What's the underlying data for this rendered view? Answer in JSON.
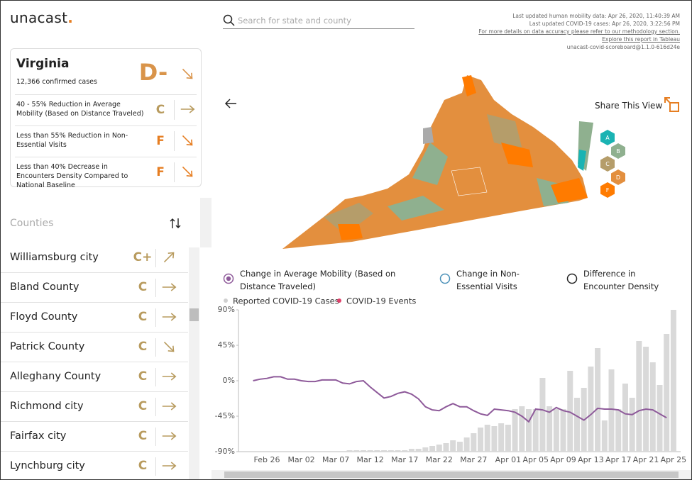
{
  "logo": {
    "name": "unacast",
    "dot": "."
  },
  "search": {
    "placeholder": "Search for state and county"
  },
  "updates": [
    "Last updated human mobility data: Apr 26, 2020, 11:40:39 AM",
    "Last updated COVID-19 cases: Apr 26, 2020, 3:22:56 PM",
    "For more details on data accuracy please refer to our methodology section.",
    "Explore this report in Tableau",
    "unacast-covid-scoreboard@1.1.0-616d24e"
  ],
  "state": {
    "name": "Virginia",
    "cases": "12,366 confirmed cases",
    "grade": "D-",
    "metrics": [
      {
        "text": "40 - 55% Reduction in Average Mobility (Based on Distance Traveled)",
        "grade": "C"
      },
      {
        "text": "Less than 55% Reduction in Non-Essential Visits",
        "grade": "F"
      },
      {
        "text": "Less than 40% Decrease in Encounters Density Compared to National Baseline",
        "grade": "F"
      }
    ]
  },
  "counties": {
    "title": "Counties",
    "rows": [
      {
        "name": "Williamsburg city",
        "grade": "C+"
      },
      {
        "name": "Bland County",
        "grade": "C"
      },
      {
        "name": "Floyd County",
        "grade": "C"
      },
      {
        "name": "Patrick County",
        "grade": "C"
      },
      {
        "name": "Alleghany County",
        "grade": "C"
      },
      {
        "name": "Richmond city",
        "grade": "C"
      },
      {
        "name": "Fairfax city",
        "grade": "C"
      },
      {
        "name": "Lynchburg city",
        "grade": "C"
      }
    ]
  },
  "share": "Share This View",
  "grade_legend": [
    "A",
    "B",
    "C",
    "D",
    "F"
  ],
  "metric_options": [
    "Change in Average Mobility (Based on Distance Traveled)",
    "Change in Non-Essential Visits",
    "Difference in Encounter Density"
  ],
  "chart_data": {
    "type": "combo",
    "legend": [
      "Reported COVID-19 Cases",
      "COVID-19 Events"
    ],
    "categories": [
      "Feb 24",
      "Feb 25",
      "Feb 26",
      "Feb 27",
      "Feb 28",
      "Feb 29",
      "Mar 01",
      "Mar 02",
      "Mar 03",
      "Mar 04",
      "Mar 05",
      "Mar 06",
      "Mar 07",
      "Mar 08",
      "Mar 09",
      "Mar 10",
      "Mar 11",
      "Mar 12",
      "Mar 13",
      "Mar 14",
      "Mar 15",
      "Mar 16",
      "Mar 17",
      "Mar 18",
      "Mar 19",
      "Mar 20",
      "Mar 21",
      "Mar 22",
      "Mar 23",
      "Mar 24",
      "Mar 25",
      "Mar 26",
      "Mar 27",
      "Mar 28",
      "Mar 29",
      "Mar 30",
      "Mar 31",
      "Apr 01",
      "Apr 02",
      "Apr 03",
      "Apr 04",
      "Apr 05",
      "Apr 06",
      "Apr 07",
      "Apr 08",
      "Apr 09",
      "Apr 10",
      "Apr 11",
      "Apr 12",
      "Apr 13",
      "Apr 14",
      "Apr 15",
      "Apr 16",
      "Apr 17",
      "Apr 18",
      "Apr 19",
      "Apr 20",
      "Apr 21",
      "Apr 22",
      "Apr 23",
      "Apr 24",
      "Apr 25"
    ],
    "xticks": [
      "Feb 26",
      "Mar 02",
      "Mar 07",
      "Mar 12",
      "Mar 17",
      "Mar 22",
      "Mar 27",
      "Apr 01",
      "Apr 05",
      "Apr 09",
      "Apr 13",
      "Apr 17",
      "Apr 21",
      "Apr 25"
    ],
    "ylim": [
      -90,
      90
    ],
    "yticks": [
      {
        "value": -90,
        "label": "-90%"
      },
      {
        "value": -45,
        "label": "-45%"
      },
      {
        "value": 0,
        "label": "0%"
      },
      {
        "value": 45,
        "label": "45%"
      },
      {
        "value": 90,
        "label": "90%"
      }
    ],
    "y2lim": [
      0,
      100
    ],
    "series": [
      {
        "name": "Reported COVID-19 Cases",
        "color": "#d9d9d9",
        "axis": "y2",
        "kind": "bar",
        "values": [
          0,
          0,
          0,
          0,
          0,
          0,
          0,
          0,
          0,
          0,
          0,
          0,
          0,
          0,
          1,
          1,
          1,
          1,
          1,
          1,
          1,
          1,
          1,
          2,
          2,
          3,
          4,
          5,
          6,
          8,
          7,
          10,
          13,
          17,
          19,
          18,
          20,
          19,
          30,
          32,
          30,
          30,
          52,
          32,
          30,
          30,
          57,
          38,
          45,
          60,
          73,
          22,
          58,
          30,
          48,
          38,
          78,
          74,
          63,
          47,
          83,
          100
        ]
      },
      {
        "name": "Change in Average Mobility (Based on Distance Traveled)",
        "color": "#8e5a9a",
        "kind": "line",
        "values": [
          0,
          2,
          3,
          5,
          5,
          2,
          2,
          0,
          -1,
          -1,
          1,
          1,
          1,
          -3,
          -4,
          -1,
          0,
          -8,
          -15,
          -22,
          -20,
          -16,
          -14,
          -17,
          -23,
          -33,
          -37,
          -38,
          -33,
          -29,
          -33,
          -33,
          -38,
          -42,
          -44,
          -36,
          -37,
          -38,
          -40,
          -45,
          -52,
          -36,
          -37,
          -40,
          -34,
          -38,
          -40,
          -45,
          -50,
          -43,
          -35,
          -36,
          -36,
          -37,
          -42,
          -43,
          -38,
          -36,
          -37,
          -42,
          -47,
          null
        ]
      }
    ]
  }
}
